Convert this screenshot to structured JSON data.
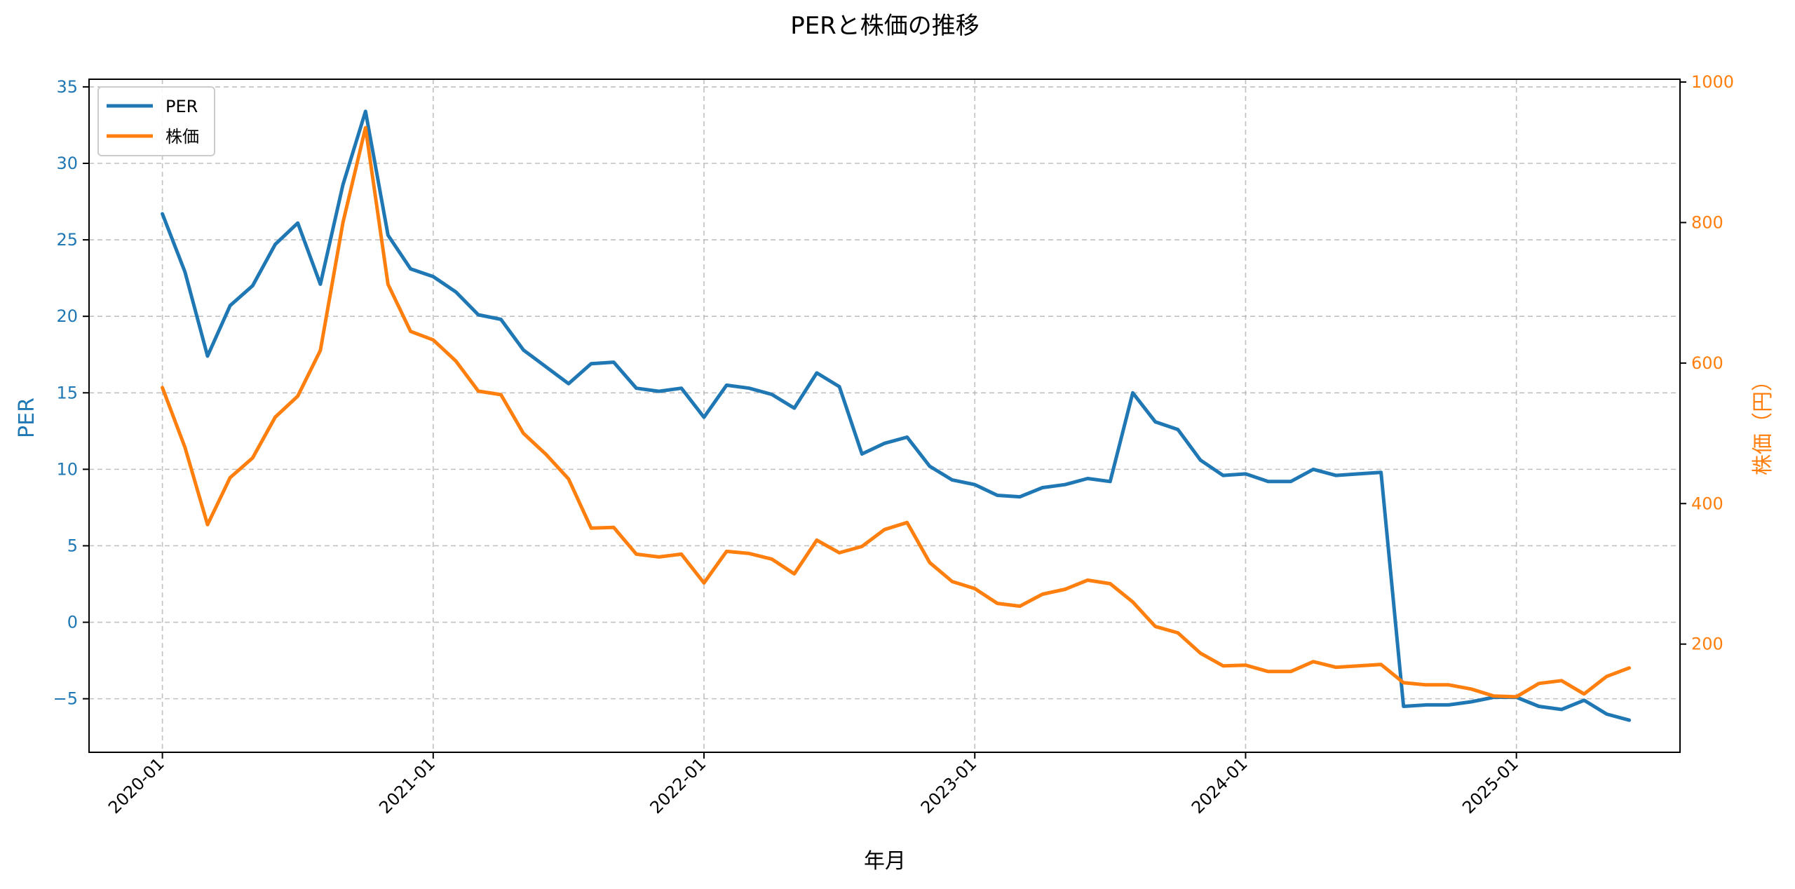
{
  "chart_data": {
    "type": "line",
    "title": "PERと株価の推移",
    "xlabel": "年月",
    "ylabel_left": "PER",
    "ylabel_right": "株価（円）",
    "x_start": "2020-01",
    "x_end": "2025-05",
    "x_ticks": [
      "2020-01",
      "2021-01",
      "2022-01",
      "2023-01",
      "2024-01",
      "2025-01"
    ],
    "y_left_range": [
      -8.5,
      35.5
    ],
    "y_left_ticks": [
      "35",
      "30",
      "25",
      "20",
      "15",
      "10",
      "5",
      "0",
      "−5"
    ],
    "y_right_range": [
      46,
      1004
    ],
    "y_right_ticks": [
      "1000",
      "800",
      "600",
      "400",
      "200"
    ],
    "grid": true,
    "legend_position": "top-left",
    "colors": {
      "per": "#1f77b4",
      "price": "#ff7f0e"
    },
    "series": [
      {
        "name": "PER",
        "axis": "left",
        "values": [
          26.7,
          22.9,
          17.4,
          20.7,
          22.0,
          24.7,
          26.1,
          22.1,
          28.6,
          33.4,
          25.3,
          23.1,
          22.6,
          21.6,
          20.1,
          19.8,
          17.8,
          16.7,
          15.6,
          16.9,
          17.0,
          15.3,
          15.1,
          15.3,
          13.4,
          15.5,
          15.3,
          14.9,
          14.0,
          16.3,
          15.4,
          11.0,
          11.7,
          12.1,
          10.2,
          9.3,
          9.0,
          8.3,
          8.2,
          8.8,
          9.0,
          9.4,
          9.2,
          15.0,
          13.1,
          12.6,
          10.6,
          9.6,
          9.7,
          9.2,
          9.2,
          10.0,
          9.6,
          9.7,
          9.8,
          -5.5,
          -5.4,
          -5.4,
          -5.2,
          -4.9,
          -4.9,
          -5.5,
          -5.7,
          -5.1,
          -6.0,
          -6.4
        ]
      },
      {
        "name": "株価",
        "axis": "right",
        "values": [
          565,
          480,
          370,
          437,
          465,
          523,
          553,
          618,
          800,
          935,
          712,
          645,
          633,
          603,
          560,
          555,
          500,
          470,
          435,
          365,
          366,
          328,
          324,
          328,
          287,
          332,
          329,
          321,
          300,
          348,
          330,
          339,
          363,
          373,
          316,
          289,
          279,
          258,
          254,
          271,
          278,
          291,
          286,
          260,
          225,
          216,
          187,
          169,
          170,
          161,
          161,
          175,
          167,
          169,
          171,
          145,
          142,
          142,
          136,
          126,
          125,
          144,
          148,
          129,
          154,
          166
        ]
      }
    ]
  }
}
